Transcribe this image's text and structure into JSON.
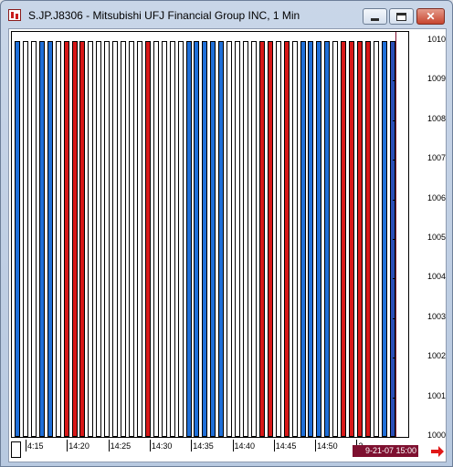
{
  "window": {
    "title": "S.JP.J8306 - Mitsubishi UFJ Financial Group INC, 1 Min",
    "icons": {
      "app": "chart-app-icon",
      "minimize": "minimize-icon",
      "maximize": "maximize-icon",
      "close": "close-icon",
      "scroll": "red-arrow-right-icon"
    }
  },
  "colors": {
    "up": "#1f6fd8",
    "down": "#d81818",
    "cursor": "#7e1030"
  },
  "chart_data": {
    "type": "bar",
    "ylim": [
      1000,
      1010
    ],
    "y_ticks": [
      "1010",
      "1009",
      "1008",
      "1007",
      "1006",
      "1005",
      "1004",
      "1003",
      "1002",
      "1001",
      "1000"
    ],
    "x_tick_labels": [
      "4:15",
      "14:20",
      "14:25",
      "14:30",
      "14:35",
      "14:40",
      "14:45",
      "14:50",
      "2"
    ],
    "bars": [
      "up",
      "empty",
      "empty",
      "up",
      "up",
      "empty",
      "down",
      "down",
      "down",
      "empty",
      "empty",
      "empty",
      "empty",
      "empty",
      "empty",
      "empty",
      "down",
      "empty",
      "empty",
      "empty",
      "empty",
      "up",
      "up",
      "up",
      "up",
      "up",
      "empty",
      "empty",
      "empty",
      "empty",
      "down",
      "down",
      "empty",
      "down",
      "empty",
      "up",
      "up",
      "up",
      "up",
      "empty",
      "down",
      "down",
      "down",
      "down",
      "empty",
      "up",
      "last"
    ],
    "cursor_label": "9-21-07 15:00"
  }
}
